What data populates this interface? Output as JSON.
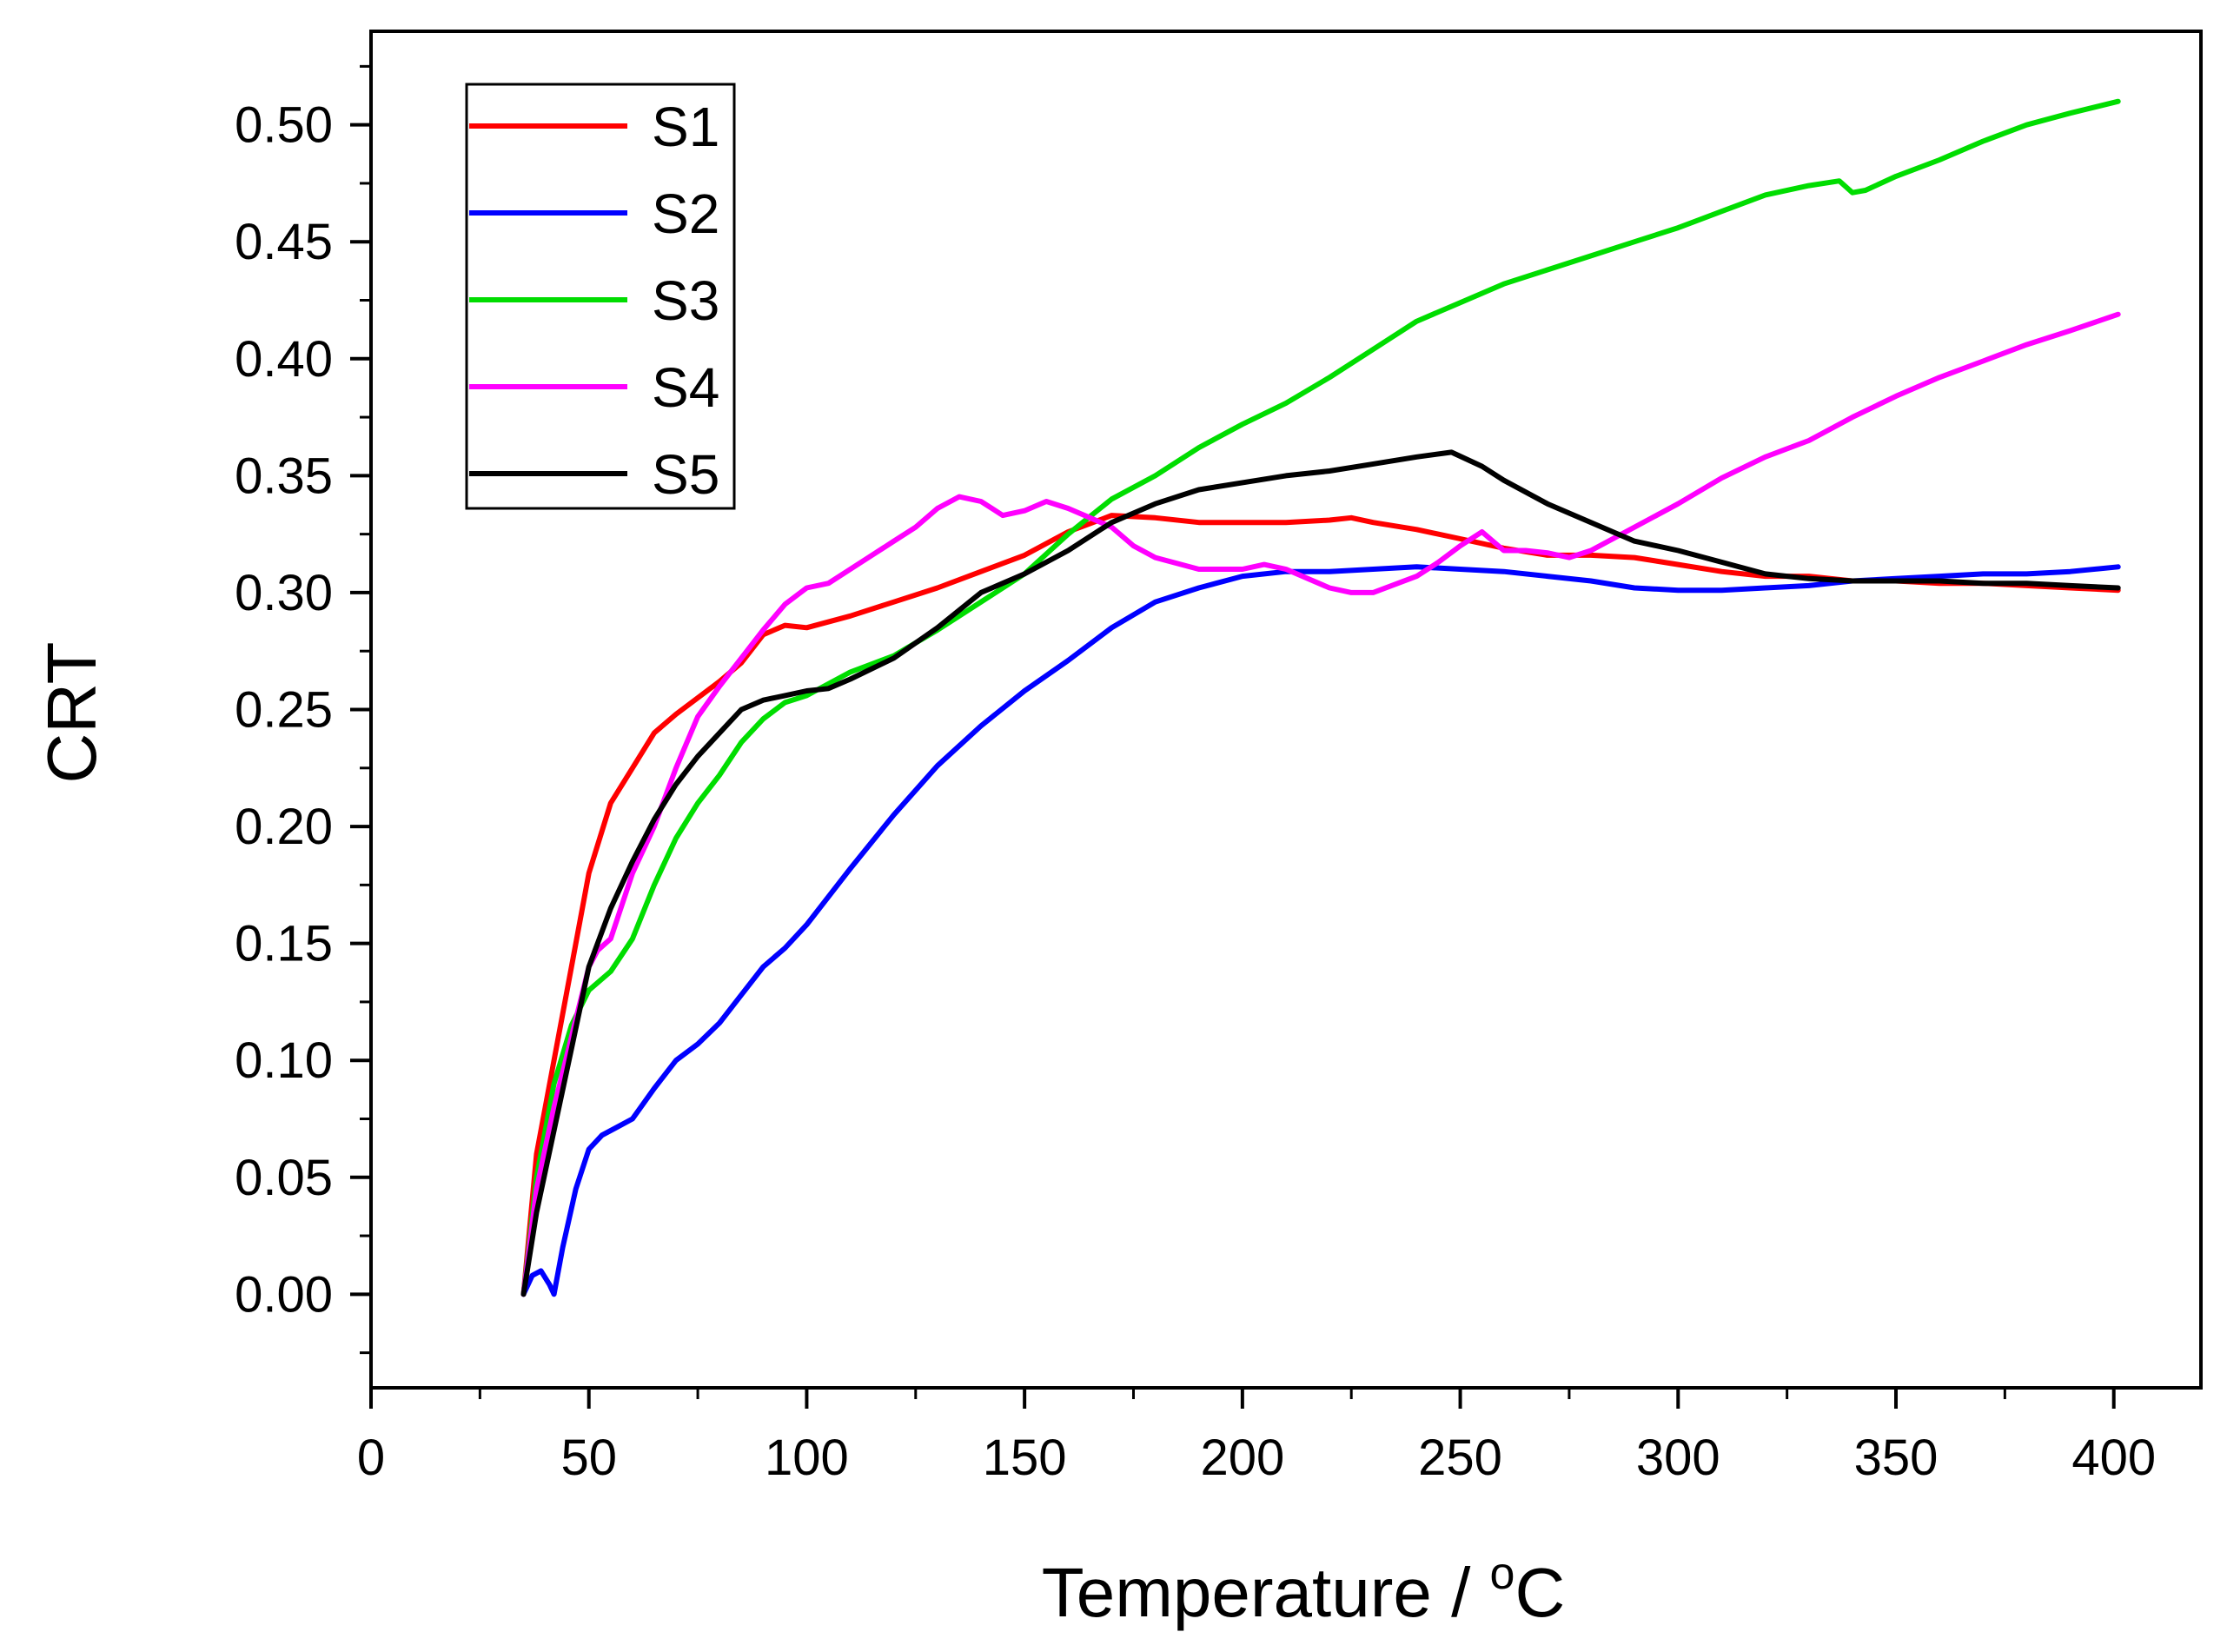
{
  "chart_data": {
    "type": "line",
    "title": "",
    "xlabel": "Temperature / °C",
    "xlabel_main": "Temperature / ",
    "xlabel_sup": "o",
    "xlabel_unit": "C",
    "ylabel": "CRT",
    "xlim": [
      0,
      420
    ],
    "ylim": [
      -0.04,
      0.54
    ],
    "x_ticks": [
      0,
      50,
      100,
      150,
      200,
      250,
      300,
      350,
      400
    ],
    "x_tick_labels": [
      "0",
      "50",
      "100",
      "150",
      "200",
      "250",
      "300",
      "350",
      "400"
    ],
    "y_ticks": [
      0.0,
      0.05,
      0.1,
      0.15,
      0.2,
      0.25,
      0.3,
      0.35,
      0.4,
      0.45,
      0.5
    ],
    "y_tick_labels": [
      "0.00",
      "0.05",
      "0.10",
      "0.15",
      "0.20",
      "0.25",
      "0.30",
      "0.35",
      "0.40",
      "0.45",
      "0.50"
    ],
    "grid": false,
    "legend_position": "top-left",
    "series": [
      {
        "name": "S1",
        "color": "#ff0000",
        "x": [
          35,
          38,
          42,
          46,
          50,
          55,
          60,
          65,
          70,
          75,
          80,
          85,
          90,
          95,
          100,
          110,
          120,
          130,
          140,
          150,
          160,
          170,
          180,
          190,
          200,
          210,
          220,
          225,
          230,
          240,
          250,
          260,
          270,
          280,
          290,
          300,
          310,
          320,
          330,
          340,
          350,
          360,
          370,
          380,
          390,
          401
        ],
        "y": [
          0.0,
          0.06,
          0.1,
          0.14,
          0.18,
          0.21,
          0.225,
          0.24,
          0.248,
          0.255,
          0.262,
          0.27,
          0.282,
          0.286,
          0.285,
          0.29,
          0.296,
          0.302,
          0.309,
          0.316,
          0.326,
          0.333,
          0.332,
          0.33,
          0.33,
          0.33,
          0.331,
          0.332,
          0.33,
          0.327,
          0.323,
          0.319,
          0.316,
          0.316,
          0.315,
          0.312,
          0.309,
          0.307,
          0.307,
          0.305,
          0.305,
          0.304,
          0.304,
          0.303,
          0.302,
          0.301
        ]
      },
      {
        "name": "S2",
        "color": "#0000ff",
        "x": [
          35,
          37,
          39,
          41,
          42,
          44,
          47,
          50,
          53,
          56,
          60,
          65,
          70,
          75,
          80,
          85,
          90,
          95,
          100,
          110,
          120,
          130,
          140,
          150,
          160,
          170,
          180,
          190,
          200,
          210,
          220,
          230,
          240,
          250,
          260,
          270,
          280,
          290,
          300,
          310,
          320,
          330,
          340,
          350,
          360,
          370,
          380,
          390,
          401
        ],
        "y": [
          0.0,
          0.008,
          0.01,
          0.004,
          0.0,
          0.02,
          0.045,
          0.062,
          0.068,
          0.071,
          0.075,
          0.088,
          0.1,
          0.107,
          0.116,
          0.128,
          0.14,
          0.148,
          0.158,
          0.182,
          0.205,
          0.226,
          0.243,
          0.258,
          0.271,
          0.285,
          0.296,
          0.302,
          0.307,
          0.309,
          0.309,
          0.31,
          0.311,
          0.31,
          0.309,
          0.307,
          0.305,
          0.302,
          0.301,
          0.301,
          0.302,
          0.303,
          0.305,
          0.306,
          0.307,
          0.308,
          0.308,
          0.309,
          0.311
        ]
      },
      {
        "name": "S3",
        "color": "#00dd00",
        "x": [
          35,
          38,
          42,
          46,
          50,
          55,
          60,
          65,
          70,
          75,
          80,
          85,
          90,
          95,
          100,
          110,
          120,
          130,
          140,
          150,
          160,
          170,
          180,
          190,
          200,
          210,
          220,
          230,
          240,
          250,
          260,
          270,
          280,
          290,
          300,
          310,
          320,
          330,
          337,
          340,
          343,
          350,
          360,
          370,
          380,
          390,
          401
        ],
        "y": [
          0.0,
          0.05,
          0.09,
          0.115,
          0.13,
          0.138,
          0.152,
          0.175,
          0.195,
          0.21,
          0.222,
          0.236,
          0.246,
          0.253,
          0.256,
          0.266,
          0.273,
          0.284,
          0.296,
          0.308,
          0.325,
          0.34,
          0.35,
          0.362,
          0.372,
          0.381,
          0.392,
          0.404,
          0.416,
          0.424,
          0.432,
          0.438,
          0.444,
          0.45,
          0.456,
          0.463,
          0.47,
          0.474,
          0.476,
          0.471,
          0.472,
          0.478,
          0.485,
          0.493,
          0.5,
          0.505,
          0.51
        ]
      },
      {
        "name": "S4",
        "color": "#ff00ff",
        "x": [
          35,
          38,
          42,
          46,
          50,
          52,
          55,
          60,
          65,
          70,
          75,
          80,
          85,
          90,
          95,
          100,
          105,
          110,
          115,
          120,
          125,
          130,
          135,
          140,
          145,
          150,
          155,
          160,
          165,
          170,
          175,
          180,
          190,
          200,
          205,
          210,
          220,
          225,
          230,
          240,
          245,
          250,
          255,
          260,
          265,
          270,
          275,
          280,
          290,
          300,
          310,
          320,
          330,
          340,
          350,
          360,
          370,
          380,
          390,
          401
        ],
        "y": [
          0.0,
          0.045,
          0.08,
          0.11,
          0.14,
          0.147,
          0.152,
          0.18,
          0.2,
          0.225,
          0.247,
          0.26,
          0.272,
          0.284,
          0.295,
          0.302,
          0.304,
          0.31,
          0.316,
          0.322,
          0.328,
          0.336,
          0.341,
          0.339,
          0.333,
          0.335,
          0.339,
          0.336,
          0.332,
          0.328,
          0.32,
          0.315,
          0.31,
          0.31,
          0.312,
          0.31,
          0.302,
          0.3,
          0.3,
          0.307,
          0.313,
          0.32,
          0.326,
          0.318,
          0.318,
          0.317,
          0.315,
          0.318,
          0.328,
          0.338,
          0.349,
          0.358,
          0.365,
          0.375,
          0.384,
          0.392,
          0.399,
          0.406,
          0.412,
          0.419
        ]
      },
      {
        "name": "S5",
        "color": "#000000",
        "x": [
          35,
          38,
          42,
          46,
          50,
          55,
          60,
          65,
          70,
          75,
          80,
          85,
          90,
          95,
          100,
          105,
          110,
          120,
          130,
          140,
          150,
          160,
          170,
          180,
          190,
          200,
          210,
          220,
          230,
          240,
          248,
          255,
          260,
          270,
          280,
          290,
          300,
          310,
          320,
          330,
          340,
          350,
          360,
          370,
          380,
          390,
          401
        ],
        "y": [
          0.0,
          0.035,
          0.07,
          0.105,
          0.14,
          0.165,
          0.185,
          0.203,
          0.218,
          0.23,
          0.24,
          0.25,
          0.254,
          0.256,
          0.258,
          0.259,
          0.263,
          0.272,
          0.285,
          0.3,
          0.308,
          0.318,
          0.33,
          0.338,
          0.344,
          0.347,
          0.35,
          0.352,
          0.355,
          0.358,
          0.36,
          0.354,
          0.348,
          0.338,
          0.33,
          0.322,
          0.318,
          0.313,
          0.308,
          0.306,
          0.305,
          0.305,
          0.305,
          0.304,
          0.304,
          0.303,
          0.302
        ]
      }
    ]
  }
}
